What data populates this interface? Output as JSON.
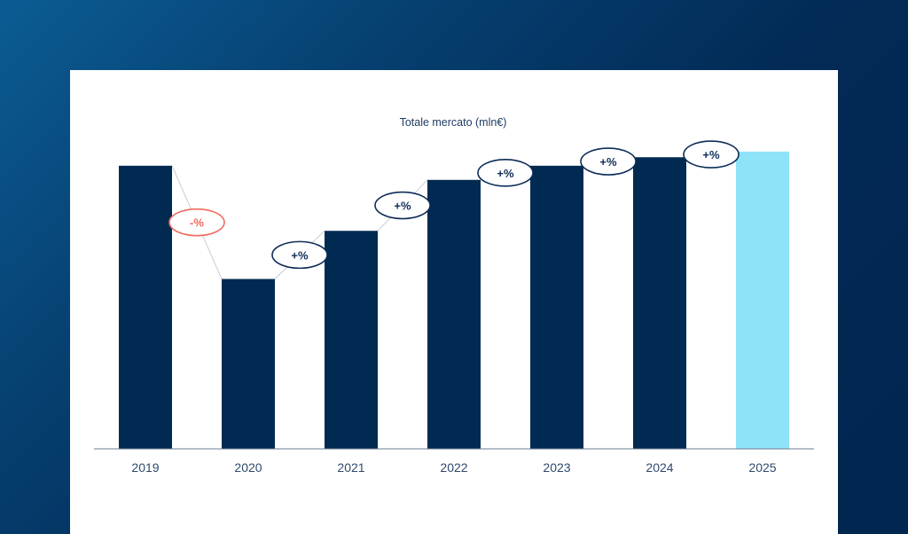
{
  "chart_data": {
    "type": "bar",
    "title": "Totale mercato (mln€)",
    "categories": [
      "2019",
      "2020",
      "2021",
      "2022",
      "2023",
      "2024",
      "2025"
    ],
    "values": [
      100,
      60,
      77,
      95,
      100,
      103,
      105
    ],
    "ylim": [
      0,
      120
    ],
    "xlabel": "",
    "ylabel": "",
    "grid": false,
    "colors": {
      "bar": "#002a52",
      "highlight_bar": "#8fe3f8",
      "connector": "#c9cdd3",
      "increase": "#0e2d57",
      "decrease": "#f06a5e",
      "axis": "#6a7b8f"
    },
    "highlight_index": 6,
    "change_labels": [
      {
        "from": "2019",
        "to": "2020",
        "label": "-%",
        "direction": "down"
      },
      {
        "from": "2020",
        "to": "2021",
        "label": "+%",
        "direction": "up"
      },
      {
        "from": "2021",
        "to": "2022",
        "label": "+%",
        "direction": "up"
      },
      {
        "from": "2022",
        "to": "2023",
        "label": "+%",
        "direction": "up"
      },
      {
        "from": "2023",
        "to": "2024",
        "label": "+%",
        "direction": "up"
      },
      {
        "from": "2024",
        "to": "2025",
        "label": "+%",
        "direction": "up"
      }
    ]
  }
}
